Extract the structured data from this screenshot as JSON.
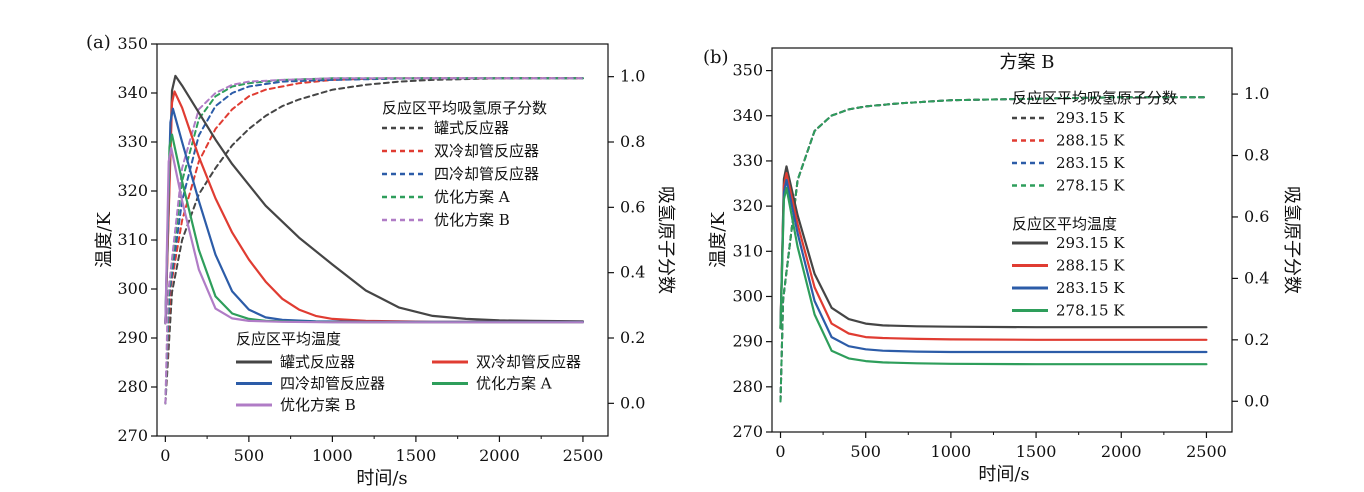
{
  "chart_data": [
    {
      "type": "line",
      "panel_label": "(a)",
      "xlabel": "时间/s",
      "ylabel_left": "温度/K",
      "ylabel_right": "吸氢原子分数",
      "xlim": [
        -50,
        2650
      ],
      "xticks": [
        "0",
        "500",
        "1000",
        "1500",
        "2000",
        "2500"
      ],
      "ylim_left": [
        270,
        350
      ],
      "yticks_left": [
        "270",
        "280",
        "290",
        "300",
        "310",
        "320",
        "330",
        "340",
        "350"
      ],
      "ylim_right": [
        -0.1,
        1.1
      ],
      "yticks_right": [
        "0.0",
        "0.2",
        "0.4",
        "0.6",
        "0.8",
        "1.0"
      ],
      "legend_fraction_title": "反应区平均吸氢原子分数",
      "legend_temperature_title": "反应区平均温度",
      "temperature_series": [
        {
          "name": "罐式反应器",
          "color": "#454545",
          "x": [
            0,
            40,
            60,
            100,
            200,
            300,
            400,
            600,
            800,
            1000,
            1200,
            1400,
            1600,
            1800,
            2000,
            2200,
            2500
          ],
          "y": [
            293,
            340.5,
            343.5,
            341.5,
            336,
            330.5,
            325.5,
            317,
            310.5,
            305,
            299.7,
            296.2,
            294.5,
            293.9,
            293.6,
            293.5,
            293.4
          ]
        },
        {
          "name": "双冷却管反应器",
          "color": "#e03c32",
          "x": [
            0,
            40,
            55,
            100,
            200,
            300,
            400,
            500,
            600,
            700,
            800,
            900,
            1000,
            1200,
            1400,
            1600,
            2000,
            2500
          ],
          "y": [
            293,
            338,
            340.3,
            337,
            327,
            318.5,
            311.5,
            306,
            301.5,
            298,
            295.8,
            294.5,
            293.9,
            293.5,
            293.4,
            293.3,
            293.3,
            293.3
          ]
        },
        {
          "name": "四冷却管反应器",
          "color": "#2c5ca8",
          "x": [
            0,
            30,
            45,
            100,
            200,
            300,
            400,
            500,
            600,
            700,
            900,
            1200,
            1500,
            2000,
            2500
          ],
          "y": [
            293,
            334,
            336.8,
            330,
            318,
            307,
            299.5,
            295.8,
            294.2,
            293.7,
            293.4,
            293.3,
            293.3,
            293.3,
            293.3
          ]
        },
        {
          "name": "优化方案 A",
          "color": "#2e9e5b",
          "x": [
            0,
            25,
            40,
            100,
            200,
            300,
            400,
            500,
            600,
            800,
            1200,
            1600,
            2000,
            2500
          ],
          "y": [
            293,
            329,
            331.5,
            322,
            308,
            298.5,
            295,
            293.9,
            293.5,
            293.3,
            293.2,
            293.2,
            293.2,
            293.2
          ]
        },
        {
          "name": "优化方案 B",
          "color": "#b07cc6",
          "x": [
            0,
            20,
            35,
            100,
            200,
            300,
            400,
            500,
            700,
            1000,
            1500,
            2000,
            2500
          ],
          "y": [
            293,
            326,
            328.8,
            318,
            304,
            296,
            294,
            293.5,
            293.3,
            293.2,
            293.2,
            293.2,
            293.2
          ]
        }
      ],
      "fraction_series": [
        {
          "name": "罐式反应器",
          "color": "#454545",
          "x": [
            0,
            40,
            100,
            200,
            300,
            400,
            500,
            600,
            700,
            800,
            1000,
            1200,
            1400,
            1600,
            2000,
            2500
          ],
          "y": [
            0,
            0.34,
            0.5,
            0.64,
            0.72,
            0.79,
            0.84,
            0.88,
            0.91,
            0.93,
            0.96,
            0.975,
            0.985,
            0.99,
            0.995,
            0.995
          ]
        },
        {
          "name": "双冷却管反应器",
          "color": "#e03c32",
          "x": [
            0,
            30,
            100,
            200,
            300,
            400,
            500,
            600,
            800,
            1000,
            1300,
            1700,
            2500
          ],
          "y": [
            0,
            0.35,
            0.56,
            0.74,
            0.84,
            0.9,
            0.94,
            0.96,
            0.98,
            0.99,
            0.995,
            0.995,
            0.995
          ]
        },
        {
          "name": "四冷却管反应器",
          "color": "#2c5ca8",
          "x": [
            0,
            25,
            100,
            200,
            300,
            400,
            500,
            700,
            1000,
            1500,
            2500
          ],
          "y": [
            0,
            0.34,
            0.62,
            0.82,
            0.91,
            0.95,
            0.97,
            0.985,
            0.99,
            0.995,
            0.995
          ]
        },
        {
          "name": "优化方案 A",
          "color": "#2e9e5b",
          "x": [
            0,
            20,
            100,
            200,
            300,
            400,
            500,
            700,
            1000,
            1500,
            2500
          ],
          "y": [
            0,
            0.34,
            0.68,
            0.87,
            0.94,
            0.97,
            0.98,
            0.99,
            0.995,
            0.995,
            0.995
          ]
        },
        {
          "name": "优化方案 B",
          "color": "#b07cc6",
          "x": [
            0,
            15,
            100,
            200,
            300,
            400,
            500,
            700,
            1000,
            1500,
            2500
          ],
          "y": [
            0,
            0.33,
            0.72,
            0.9,
            0.95,
            0.975,
            0.985,
            0.99,
            0.995,
            0.995,
            0.995
          ]
        }
      ]
    },
    {
      "type": "line",
      "panel_label": "(b)",
      "title": "方案 B",
      "xlabel": "时间/s",
      "ylabel_left": "温度/K",
      "ylabel_right": "吸氢原子分数",
      "xlim": [
        -50,
        2650
      ],
      "xticks": [
        "0",
        "500",
        "1000",
        "1500",
        "2000",
        "2500"
      ],
      "ylim_left": [
        270,
        355
      ],
      "yticks_left": [
        "270",
        "280",
        "290",
        "300",
        "310",
        "320",
        "330",
        "340",
        "350"
      ],
      "ylim_right": [
        -0.1,
        1.15
      ],
      "yticks_right": [
        "0.0",
        "0.2",
        "0.4",
        "0.6",
        "0.8",
        "1.0"
      ],
      "legend_fraction_title": "反应区平均吸氢原子分数",
      "legend_temperature_title": "反应区平均温度",
      "fraction_series": [
        {
          "name": "293.15 K",
          "color": "#454545",
          "x": [
            0,
            15,
            100,
            200,
            300,
            400,
            500,
            700,
            1000,
            1500,
            2000,
            2500
          ],
          "y": [
            0,
            0.33,
            0.72,
            0.88,
            0.93,
            0.95,
            0.96,
            0.97,
            0.98,
            0.985,
            0.99,
            0.99
          ]
        },
        {
          "name": "288.15 K",
          "color": "#e03c32",
          "x": [
            0,
            15,
            100,
            200,
            300,
            400,
            500,
            700,
            1000,
            1500,
            2000,
            2500
          ],
          "y": [
            0,
            0.33,
            0.72,
            0.88,
            0.93,
            0.95,
            0.96,
            0.97,
            0.98,
            0.985,
            0.99,
            0.99
          ]
        },
        {
          "name": "283.15 K",
          "color": "#2c5ca8",
          "x": [
            0,
            15,
            100,
            200,
            300,
            400,
            500,
            700,
            1000,
            1500,
            2000,
            2500
          ],
          "y": [
            0,
            0.33,
            0.72,
            0.88,
            0.93,
            0.95,
            0.96,
            0.97,
            0.98,
            0.985,
            0.99,
            0.99
          ]
        },
        {
          "name": " 278.15 K",
          "color": "#2e9e5b",
          "x": [
            0,
            15,
            100,
            200,
            300,
            400,
            500,
            700,
            1000,
            1500,
            2000,
            2500
          ],
          "y": [
            0,
            0.33,
            0.72,
            0.88,
            0.93,
            0.95,
            0.96,
            0.97,
            0.98,
            0.985,
            0.99,
            0.99
          ]
        }
      ],
      "temperature_series": [
        {
          "name": "293.15 K",
          "color": "#454545",
          "x": [
            0,
            20,
            35,
            100,
            200,
            300,
            400,
            500,
            600,
            800,
            1000,
            1500,
            2000,
            2500
          ],
          "y": [
            293,
            326,
            328.8,
            318,
            305,
            297.5,
            295,
            294,
            293.6,
            293.4,
            293.3,
            293.2,
            293.2,
            293.2
          ]
        },
        {
          "name": "288.15 K",
          "color": "#e03c32",
          "x": [
            0,
            20,
            35,
            100,
            200,
            300,
            400,
            500,
            600,
            800,
            1000,
            1500,
            2000,
            2500
          ],
          "y": [
            293,
            324.5,
            327.3,
            316,
            302,
            294,
            291.8,
            291,
            290.8,
            290.6,
            290.5,
            290.4,
            290.4,
            290.4
          ]
        },
        {
          "name": "283.15 K",
          "color": "#2c5ca8",
          "x": [
            0,
            20,
            35,
            100,
            200,
            300,
            400,
            500,
            600,
            800,
            1000,
            1500,
            2000,
            2500
          ],
          "y": [
            293,
            323,
            325.8,
            314,
            299,
            291,
            289,
            288.3,
            288,
            287.8,
            287.7,
            287.7,
            287.7,
            287.7
          ]
        },
        {
          "name": "278.15 K",
          "color": "#2e9e5b",
          "x": [
            0,
            20,
            35,
            100,
            200,
            300,
            400,
            500,
            600,
            800,
            1000,
            1500,
            2000,
            2500
          ],
          "y": [
            293,
            321.5,
            324,
            311,
            296,
            288,
            286.3,
            285.7,
            285.4,
            285.2,
            285.1,
            285,
            285,
            285
          ]
        }
      ]
    }
  ]
}
